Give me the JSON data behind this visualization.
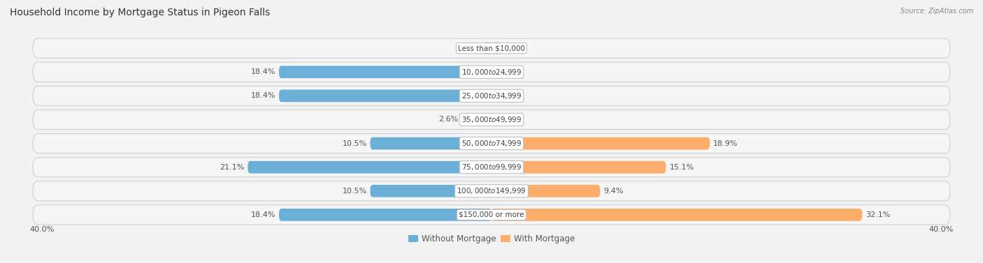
{
  "title": "Household Income by Mortgage Status in Pigeon Falls",
  "source": "Source: ZipAtlas.com",
  "categories": [
    "Less than $10,000",
    "$10,000 to $24,999",
    "$25,000 to $34,999",
    "$35,000 to $49,999",
    "$50,000 to $74,999",
    "$75,000 to $99,999",
    "$100,000 to $149,999",
    "$150,000 or more"
  ],
  "without_mortgage": [
    0.0,
    18.4,
    18.4,
    2.6,
    10.5,
    21.1,
    10.5,
    18.4
  ],
  "with_mortgage": [
    0.0,
    0.0,
    0.0,
    0.0,
    18.9,
    15.1,
    9.4,
    32.1
  ],
  "axis_max": 40.0,
  "color_without": "#6baed6",
  "color_with": "#fdae6b",
  "color_without_light": "#c6dbef",
  "color_with_light": "#fdd0a2",
  "bg_color": "#f2f2f2",
  "row_bg_light": "#f8f8f8",
  "row_bg_dark": "#ebebeb",
  "title_fontsize": 10,
  "label_fontsize": 8,
  "category_fontsize": 7.5,
  "legend_fontsize": 8.5,
  "axis_label_fontsize": 8
}
